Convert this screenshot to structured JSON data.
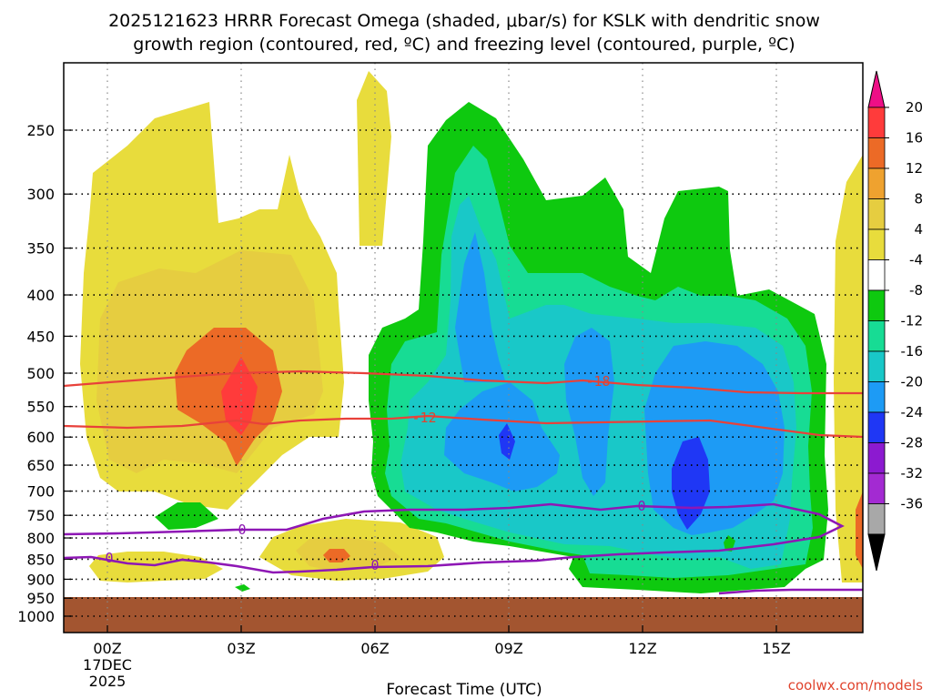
{
  "title": {
    "line1": "2025121623 HRRR Forecast Omega (shaded, μbar/s) for KSLK with dendritic snow",
    "line2": "growth region (contoured, red, ºC) and freezing level (contoured, purple, ºC)"
  },
  "credit": "coolwx.com/models",
  "chart_data": {
    "type": "heatmap",
    "title": "2025121623 HRRR Forecast Omega (shaded, μbar/s) for KSLK with dendritic snow growth region (contoured, red, ºC) and freezing level (contoured, purple, ºC)",
    "xlabel": "Forecast Time (UTC)",
    "ylabel": "",
    "x_tick_labels": [
      "00Z",
      "03Z",
      "06Z",
      "09Z",
      "12Z",
      "15Z"
    ],
    "x_date_label": [
      "17DEC",
      "2025"
    ],
    "y_tick_labels": [
      250,
      300,
      350,
      400,
      450,
      500,
      550,
      600,
      650,
      700,
      750,
      800,
      850,
      900,
      950,
      1000
    ],
    "y_scale": "log",
    "y_reversed": true,
    "colorbar": {
      "labels": [
        20,
        16,
        12,
        8,
        4,
        -4,
        -8,
        -12,
        -16,
        -20,
        -24,
        -28,
        -32,
        -36
      ],
      "colors": [
        "#ff3b3b",
        "#ec6a26",
        "#efa22f",
        "#e6cd40",
        "#e8dc3c",
        "#ffffff",
        "#0ec90f",
        "#17dc94",
        "#19c8c8",
        "#1d9bf5",
        "#1f37f5",
        "#8c1ad0",
        "#a32ad2",
        "#a8a8a8"
      ],
      "top_arrow_color": "#ee0f86",
      "bottom_arrow_color": "#000000",
      "units": "μbar/s"
    },
    "contours": {
      "dgz": {
        "color": "#e0442e",
        "labels": [
          "-18",
          "-12"
        ]
      },
      "freezing": {
        "color": "#8e17b5",
        "labels": [
          "0",
          "0",
          "0",
          "0",
          "0"
        ]
      }
    },
    "ground": {
      "color": "#a35530",
      "top_hPa": 950
    },
    "omega_regions": [
      {
        "name": "early ascent, outer",
        "value": 4,
        "color": "#e8dc3c"
      },
      {
        "name": "early ascent, moderate",
        "value": 8,
        "color": "#e6cd40"
      },
      {
        "name": "early ascent, strong",
        "value": 12,
        "color": "#ec6a26"
      },
      {
        "name": "early ascent, maximum",
        "value": 16,
        "color": "#ff3b3b"
      },
      {
        "name": "late descent, outer",
        "value": -4,
        "color": "#0ec90f"
      },
      {
        "name": "late descent, moderate",
        "value": -8,
        "color": "#17dc94"
      },
      {
        "name": "late descent, strong",
        "value": -12,
        "color": "#19c8c8"
      },
      {
        "name": "late descent, stronger",
        "value": -16,
        "color": "#1d9bf5"
      },
      {
        "name": "late descent, maximum",
        "value": -20,
        "color": "#1f37f5"
      }
    ]
  }
}
